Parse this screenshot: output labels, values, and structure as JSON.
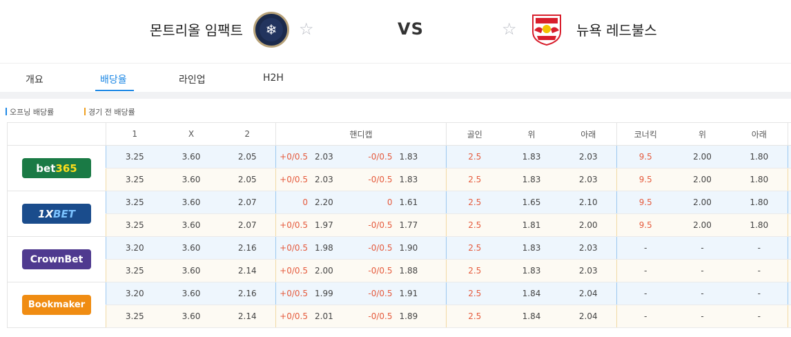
{
  "match": {
    "home_team": "몬트리올 임팩트",
    "away_team": "뉴욕 레드불스",
    "vs_label": "VS",
    "star_glyph": "☆",
    "home_logo_icon": "snowflake-crest-icon",
    "away_logo_icon": "red-bull-crest-icon"
  },
  "tabs": [
    {
      "label": "개요"
    },
    {
      "label": "배당율",
      "active": true
    },
    {
      "label": "라인업"
    },
    {
      "label": "H2H"
    }
  ],
  "legend": {
    "opening": "오프닝 배당률",
    "pre_match": "경기 전 배당률",
    "opening_color": "#1e88e5",
    "pre_match_color": "#f0a020"
  },
  "table": {
    "headers": [
      "1",
      "X",
      "2",
      "핸디캡",
      "골인",
      "위",
      "아래",
      "코너킥",
      "위",
      "아래"
    ],
    "bookmakers": [
      {
        "name": "bet365",
        "logo_parts": [
          "bet",
          "365"
        ],
        "rows": [
          {
            "home": "3.25",
            "draw": "3.60",
            "away": "2.05",
            "hc_home_line": "+0/0.5",
            "hc_home_odd": "2.03",
            "hc_away_line": "-0/0.5",
            "hc_away_odd": "1.83",
            "goal_line": "2.5",
            "goal_over": "1.83",
            "goal_under": "2.03",
            "corner_line": "9.5",
            "corner_over": "2.00",
            "corner_under": "1.80"
          },
          {
            "home": "3.25",
            "draw": "3.60",
            "away": "2.05",
            "hc_home_line": "+0/0.5",
            "hc_home_odd": "2.03",
            "hc_away_line": "-0/0.5",
            "hc_away_odd": "1.83",
            "goal_line": "2.5",
            "goal_over": "1.83",
            "goal_under": "2.03",
            "corner_line": "9.5",
            "corner_over": "2.00",
            "corner_under": "1.80"
          }
        ]
      },
      {
        "name": "1XBET",
        "logo_parts": [
          "1X",
          "BET"
        ],
        "rows": [
          {
            "home": "3.25",
            "draw": "3.60",
            "away": "2.07",
            "hc_home_line": "0",
            "hc_home_odd": "2.20",
            "hc_away_line": "0",
            "hc_away_odd": "1.61",
            "goal_line": "2.5",
            "goal_over": "1.65",
            "goal_under": "2.10",
            "corner_line": "9.5",
            "corner_over": "2.00",
            "corner_under": "1.80"
          },
          {
            "home": "3.25",
            "draw": "3.60",
            "away": "2.07",
            "hc_home_line": "+0/0.5",
            "hc_home_odd": "1.97",
            "hc_away_line": "-0/0.5",
            "hc_away_odd": "1.77",
            "goal_line": "2.5",
            "goal_over": "1.81",
            "goal_under": "2.00",
            "corner_line": "9.5",
            "corner_over": "2.00",
            "corner_under": "1.80"
          }
        ]
      },
      {
        "name": "CrownBet",
        "logo_parts": [
          "CrownBet",
          ""
        ],
        "rows": [
          {
            "home": "3.20",
            "draw": "3.60",
            "away": "2.16",
            "hc_home_line": "+0/0.5",
            "hc_home_odd": "1.98",
            "hc_away_line": "-0/0.5",
            "hc_away_odd": "1.90",
            "goal_line": "2.5",
            "goal_over": "1.83",
            "goal_under": "2.03",
            "corner_line": "-",
            "corner_over": "-",
            "corner_under": "-"
          },
          {
            "home": "3.25",
            "draw": "3.60",
            "away": "2.14",
            "hc_home_line": "+0/0.5",
            "hc_home_odd": "2.00",
            "hc_away_line": "-0/0.5",
            "hc_away_odd": "1.88",
            "goal_line": "2.5",
            "goal_over": "1.83",
            "goal_under": "2.03",
            "corner_line": "-",
            "corner_over": "-",
            "corner_under": "-"
          }
        ]
      },
      {
        "name": "Bookmaker",
        "logo_parts": [
          "Bookmaker",
          ""
        ],
        "rows": [
          {
            "home": "3.20",
            "draw": "3.60",
            "away": "2.16",
            "hc_home_line": "+0/0.5",
            "hc_home_odd": "1.99",
            "hc_away_line": "-0/0.5",
            "hc_away_odd": "1.91",
            "goal_line": "2.5",
            "goal_over": "1.84",
            "goal_under": "2.04",
            "corner_line": "-",
            "corner_over": "-",
            "corner_under": "-"
          },
          {
            "home": "3.25",
            "draw": "3.60",
            "away": "2.14",
            "hc_home_line": "+0/0.5",
            "hc_home_odd": "2.01",
            "hc_away_line": "-0/0.5",
            "hc_away_odd": "1.89",
            "goal_line": "2.5",
            "goal_over": "1.84",
            "goal_under": "2.04",
            "corner_line": "-",
            "corner_over": "-",
            "corner_under": "-"
          }
        ]
      }
    ]
  }
}
